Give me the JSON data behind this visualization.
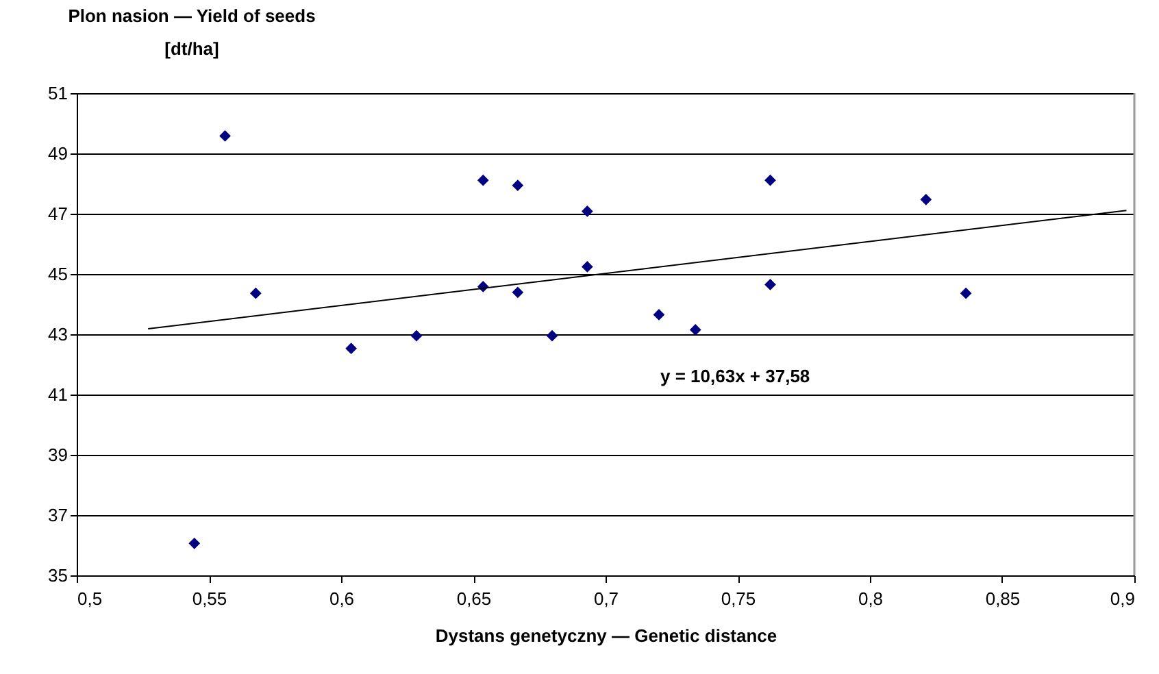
{
  "chart_data": {
    "type": "scatter",
    "ylabel": "Plon nasion — Yield of seeds\n[dt/ha]",
    "xlabel": "Dystans genetyczny — Genetic distance",
    "series": [
      {
        "color": "#000080",
        "marker": "diamond",
        "x": [
          0.5445,
          0.5561,
          0.5677,
          0.6038,
          0.6285,
          0.6537,
          0.6537,
          0.6668,
          0.6668,
          0.6798,
          0.6931,
          0.6931,
          0.7202,
          0.734,
          0.7623,
          0.7623,
          0.8212,
          0.8363
        ],
        "values": [
          36.06,
          49.58,
          44.36,
          42.53,
          42.95,
          48.11,
          44.58,
          47.94,
          44.39,
          42.95,
          47.08,
          45.24,
          43.65,
          43.15,
          48.11,
          44.65,
          47.47,
          44.36
        ]
      },
      {
        "type": "line",
        "color": "#000000",
        "marker": "none",
        "line_style": "solid",
        "x": [
          0.527,
          0.897
        ],
        "values": [
          43.18,
          47.11
        ]
      }
    ],
    "annotations": [
      "y = 10,63x + 37,58"
    ],
    "xlim": [
      0.5,
      0.9
    ],
    "xticks": [
      {
        "value": 0.5,
        "label": "0,5"
      },
      {
        "value": 0.55,
        "label": "0,55"
      },
      {
        "value": 0.6,
        "label": "0,6"
      },
      {
        "value": 0.65,
        "label": "0,65"
      },
      {
        "value": 0.7,
        "label": "0,7"
      },
      {
        "value": 0.75,
        "label": "0,75"
      },
      {
        "value": 0.8,
        "label": "0,8"
      },
      {
        "value": 0.85,
        "label": "0,85"
      },
      {
        "value": 0.9,
        "label": "0,9"
      }
    ],
    "ylim": [
      35,
      51
    ],
    "yticks": [
      35,
      37,
      39,
      41,
      43,
      45,
      47,
      49,
      51
    ],
    "grid": "y"
  }
}
